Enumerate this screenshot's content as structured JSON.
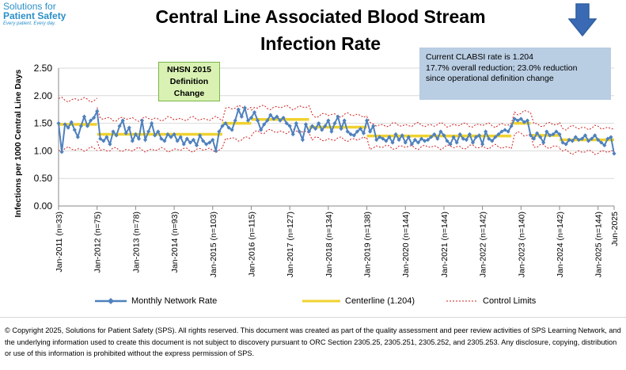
{
  "logo": {
    "line1": "Solutions for",
    "line2": "Patient Safety",
    "line3": "Every patient. Every day."
  },
  "arrow": {
    "name": "down-arrow-icon",
    "color": "#2e5fa0"
  },
  "info": {
    "line1": "Current CLABSI rate is 1.204",
    "line2": "17.7% overall reduction; 23.0% reduction",
    "line3": "since operational definition change"
  },
  "annotation": {
    "line1": "NHSN 2015",
    "line2": "Definition",
    "line3": "Change"
  },
  "chart_data": {
    "type": "line",
    "title": "Central Line Associated Blood Stream Infection Rate",
    "ylabel": "Infections per 1000 Central Line Days",
    "xlabel": "",
    "ylim": [
      0,
      2.5
    ],
    "yticks": [
      "0.00",
      "0.50",
      "1.00",
      "1.50",
      "2.00",
      "2.50"
    ],
    "grid": true,
    "legend_position": "bottom",
    "x_start": "Jan-2011",
    "x_end": "Jun-2025",
    "x_tick_labels": [
      {
        "index": 0,
        "label": "Jan-2011 (n=33)"
      },
      {
        "index": 12,
        "label": "Jan-2012 (n=75)"
      },
      {
        "index": 24,
        "label": "Jan-2013 (n=78)"
      },
      {
        "index": 36,
        "label": "Jan-2014 (n=93)"
      },
      {
        "index": 48,
        "label": "Jan-2015 (n=103)"
      },
      {
        "index": 60,
        "label": "Jan-2016 (n=115)"
      },
      {
        "index": 72,
        "label": "Jan-2017 (n=127)"
      },
      {
        "index": 84,
        "label": "Jan-2018 (n=134)"
      },
      {
        "index": 96,
        "label": "Jan-2019 (n=138)"
      },
      {
        "index": 108,
        "label": "Jan-2020 (n=144)"
      },
      {
        "index": 120,
        "label": "Jan-2021 (n=144)"
      },
      {
        "index": 132,
        "label": "Jan-2022 (n=142)"
      },
      {
        "index": 144,
        "label": "Jan-2023 (n=140)"
      },
      {
        "index": 156,
        "label": "Jan-2024 (n=142)"
      },
      {
        "index": 168,
        "label": "Jan-2025 (n=144)"
      },
      {
        "index": 173,
        "label": "Jun-2025"
      }
    ],
    "series": [
      {
        "name": "Monthly Network Rate",
        "color": "#4f81bd",
        "values": [
          1.5,
          0.98,
          1.48,
          1.42,
          1.52,
          1.38,
          1.25,
          1.45,
          1.62,
          1.45,
          1.55,
          1.6,
          1.72,
          1.22,
          1.18,
          1.25,
          1.12,
          1.35,
          1.28,
          1.45,
          1.55,
          1.32,
          1.42,
          1.18,
          1.3,
          1.22,
          1.55,
          1.2,
          1.35,
          1.5,
          1.28,
          1.35,
          1.22,
          1.18,
          1.3,
          1.25,
          1.3,
          1.18,
          1.25,
          1.12,
          1.22,
          1.15,
          1.2,
          1.1,
          1.28,
          1.18,
          1.12,
          1.15,
          1.2,
          1.0,
          1.35,
          1.45,
          1.5,
          1.42,
          1.38,
          1.55,
          1.75,
          1.62,
          1.78,
          1.55,
          1.6,
          1.7,
          1.55,
          1.38,
          1.48,
          1.55,
          1.65,
          1.58,
          1.62,
          1.55,
          1.6,
          1.5,
          1.45,
          1.3,
          1.5,
          1.35,
          1.2,
          1.48,
          1.35,
          1.45,
          1.4,
          1.5,
          1.38,
          1.45,
          1.55,
          1.35,
          1.5,
          1.62,
          1.4,
          1.55,
          1.35,
          1.3,
          1.28,
          1.35,
          1.4,
          1.32,
          1.55,
          1.35,
          1.45,
          1.2,
          1.25,
          1.22,
          1.18,
          1.25,
          1.15,
          1.3,
          1.2,
          1.28,
          1.15,
          1.25,
          1.12,
          1.2,
          1.15,
          1.22,
          1.18,
          1.2,
          1.25,
          1.3,
          1.22,
          1.35,
          1.28,
          1.18,
          1.12,
          1.25,
          1.15,
          1.3,
          1.22,
          1.2,
          1.3,
          1.15,
          1.25,
          1.28,
          1.12,
          1.35,
          1.22,
          1.18,
          1.25,
          1.3,
          1.35,
          1.38,
          1.35,
          1.45,
          1.58,
          1.55,
          1.58,
          1.52,
          1.55,
          1.28,
          1.22,
          1.32,
          1.25,
          1.15,
          1.35,
          1.28,
          1.3,
          1.35,
          1.3,
          1.15,
          1.12,
          1.2,
          1.18,
          1.25,
          1.2,
          1.22,
          1.28,
          1.18,
          1.22,
          1.28,
          1.2,
          1.15,
          1.1,
          1.22,
          1.25,
          0.95
        ]
      },
      {
        "name": "Centerline (1.204)",
        "color": "#f0d230",
        "segments": [
          {
            "start": 0,
            "end": 12,
            "value": 1.48
          },
          {
            "start": 12,
            "end": 51,
            "value": 1.3
          },
          {
            "start": 51,
            "end": 60,
            "value": 1.5
          },
          {
            "start": 60,
            "end": 78,
            "value": 1.57
          },
          {
            "start": 78,
            "end": 96,
            "value": 1.43
          },
          {
            "start": 96,
            "end": 141,
            "value": 1.27
          },
          {
            "start": 141,
            "end": 147,
            "value": 1.5
          },
          {
            "start": 147,
            "end": 156,
            "value": 1.28
          },
          {
            "start": 156,
            "end": 173,
            "value": 1.2
          }
        ]
      },
      {
        "name": "Control Limits",
        "color": "#d02020",
        "band_half_widths": [
          {
            "start": 0,
            "end": 12,
            "value": 0.45
          },
          {
            "start": 12,
            "end": 60,
            "value": 0.28
          },
          {
            "start": 60,
            "end": 96,
            "value": 0.22
          },
          {
            "start": 96,
            "end": 156,
            "value": 0.2
          },
          {
            "start": 156,
            "end": 173,
            "value": 0.22
          }
        ]
      }
    ]
  },
  "legend": {
    "monthly": "Monthly Network Rate",
    "centerline": "Centerline (1.204)",
    "limits": "Control Limits"
  },
  "footer": {
    "copyright": "© Copyright 2025, Solutions for Patient Safety (SPS).  All rights reserved.  This document was created as part of the quality assessment and peer review activities of SPS Learning Network, and the underlying information used to create this document is not subject to discovery pursuant to ORC Section 2305.25, 2305.251, 2305.252, and 2305.253. Any disclosure, copying, distribution or use of this information is prohibited without the express permission of SPS."
  }
}
